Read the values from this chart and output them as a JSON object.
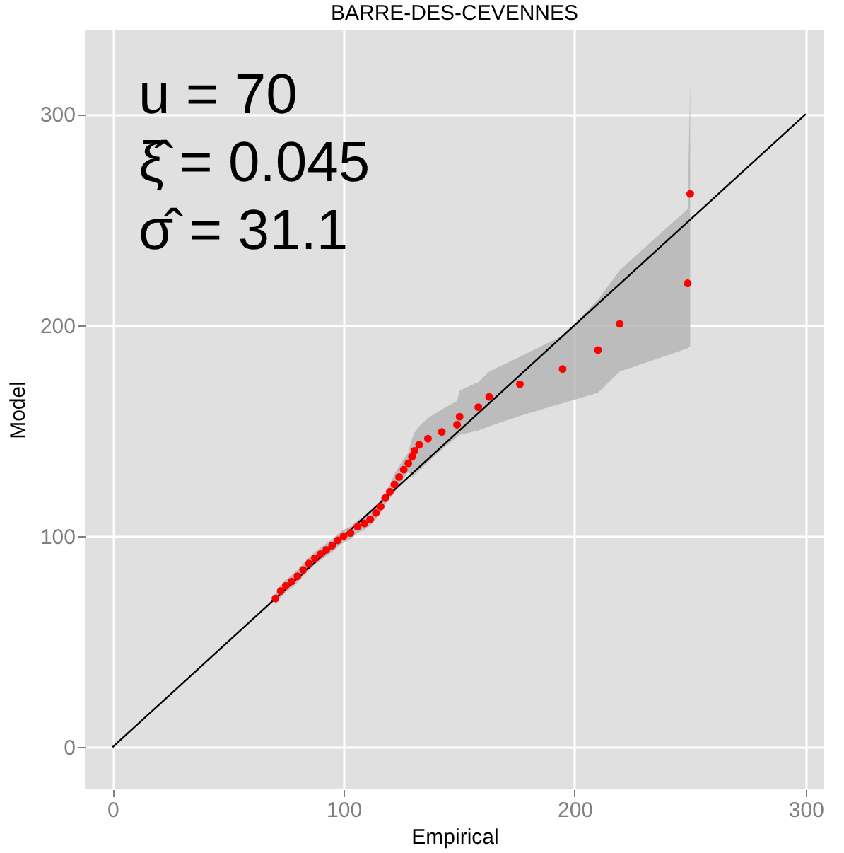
{
  "chart_data": {
    "type": "scatter",
    "title": "BARRE-DES-CEVENNES",
    "xlabel": "Empirical",
    "ylabel": "Model",
    "annotations": [
      "u  =  70",
      "ξ̂  =  0.045",
      "σ̂  =  31.1"
    ],
    "xlim": [
      -12,
      308
    ],
    "ylim": [
      -20,
      340
    ],
    "xticks": [
      0,
      100,
      200,
      300
    ],
    "yticks": [
      0,
      100,
      200,
      300
    ],
    "grid": true,
    "series": [
      {
        "marker": "circle",
        "color": "#ff0000",
        "x": [
          70.5,
          72.8,
          75,
          77.5,
          80,
          82.5,
          85,
          87.5,
          90,
          92.5,
          95,
          97.5,
          100,
          103,
          106,
          109,
          111.5,
          114,
          116,
          118,
          120,
          122,
          124,
          126,
          128,
          129.6,
          130.7,
          132.7,
          136.5,
          142.5,
          149.1,
          150.2,
          158.3,
          163,
          176.3,
          194.8,
          210.1,
          219.5,
          248.9,
          250
        ],
        "values": [
          70.5,
          74,
          76.5,
          78.5,
          81,
          84,
          87,
          89.5,
          91.5,
          93.5,
          95.5,
          98,
          100,
          101.5,
          104.5,
          106,
          108,
          111,
          114,
          118,
          121,
          124.5,
          128,
          131.5,
          134.5,
          137.6,
          140.4,
          143.3,
          146.2,
          149.4,
          152.8,
          156.6,
          161.1,
          166,
          172,
          179.2,
          188.2,
          200.6,
          219.8,
          262.2
        ],
        "lower": [
          67.5,
          71,
          73.5,
          75.5,
          78,
          81,
          84,
          86.5,
          88.5,
          90.5,
          92.5,
          95,
          97,
          98.5,
          101.5,
          103,
          105,
          108,
          111,
          115,
          118,
          120.5,
          124,
          127.5,
          130.5,
          128,
          129,
          131,
          135,
          141,
          147,
          148,
          150,
          152,
          157,
          163,
          168,
          178,
          189,
          190
        ],
        "upper": [
          73.5,
          77,
          79.5,
          81.5,
          84,
          87,
          90,
          92.5,
          94.5,
          96.5,
          98.5,
          101,
          103,
          104.5,
          107.5,
          109,
          111,
          114,
          117,
          121,
          124,
          129.5,
          133,
          136.5,
          139.5,
          146,
          149,
          152,
          156,
          160,
          164,
          169,
          173,
          178,
          185,
          195,
          212,
          226,
          255,
          315
        ]
      },
      {
        "type": "line",
        "color": "#000000",
        "x": [
          0,
          300
        ],
        "values": [
          0,
          300
        ]
      }
    ]
  }
}
